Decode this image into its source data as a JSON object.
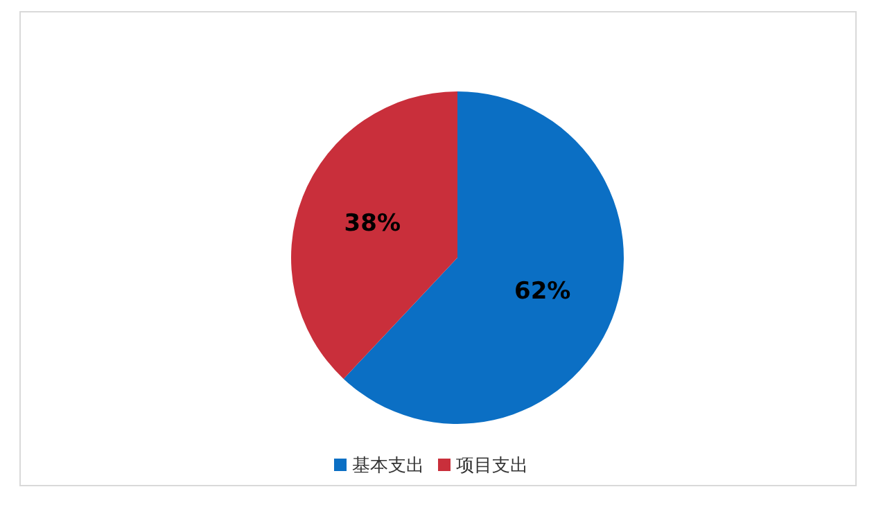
{
  "chart_data": {
    "type": "pie",
    "categories": [
      "基本支出",
      "项目支出"
    ],
    "values": [
      62,
      38
    ],
    "colors": [
      "#0b6fc4",
      "#c92f3b"
    ],
    "value_labels": [
      "62%",
      "38%"
    ],
    "legend": "bottom"
  }
}
